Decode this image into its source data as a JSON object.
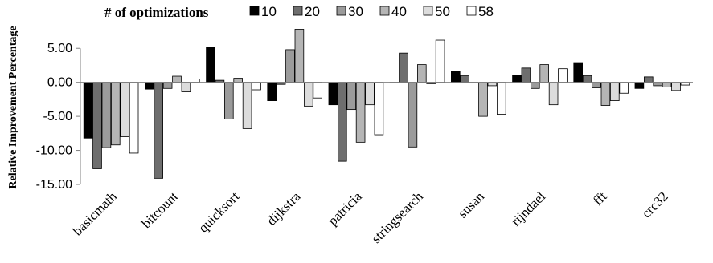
{
  "chart_data": {
    "type": "bar",
    "ylabel": "Relative Improvement Percentage",
    "ylim": [
      -15,
      7.5
    ],
    "yticks": [
      5,
      0,
      -5,
      -10,
      -15
    ],
    "ytick_labels": [
      "5.00",
      "0.00",
      "-5.00",
      "-10.00",
      "-15.00"
    ],
    "legend_title": "# of optimizations",
    "legend_position": "top",
    "grid": false,
    "categories": [
      "basicmath",
      "bitcount",
      "quicksort",
      "dijkstra",
      "patricia",
      "stringsearch",
      "susan",
      "rijndael",
      "fft",
      "crc32"
    ],
    "series": [
      {
        "name": "10",
        "color": "#000000",
        "values": [
          -8.2,
          -1.0,
          5.1,
          -2.7,
          -3.3,
          0.0,
          1.6,
          1.0,
          2.9,
          -0.9
        ]
      },
      {
        "name": "20",
        "color": "#6e6e6e",
        "values": [
          -12.7,
          -14.1,
          0.3,
          -0.3,
          -11.6,
          4.3,
          1.0,
          2.1,
          1.0,
          0.8
        ]
      },
      {
        "name": "30",
        "color": "#9b9b9b",
        "values": [
          -9.6,
          -0.9,
          -5.4,
          4.8,
          -4.0,
          -9.5,
          -0.1,
          -0.9,
          -0.8,
          -0.5
        ]
      },
      {
        "name": "40",
        "color": "#b5b5b5",
        "values": [
          -9.2,
          0.9,
          0.6,
          7.8,
          -8.8,
          2.6,
          -5.0,
          2.6,
          -3.4,
          -0.7
        ]
      },
      {
        "name": "50",
        "color": "#dcdcdc",
        "values": [
          -8.0,
          -1.4,
          -6.8,
          -3.5,
          -3.3,
          -0.2,
          -0.5,
          -3.3,
          -2.7,
          -1.2
        ]
      },
      {
        "name": "58",
        "color": "#ffffff",
        "values": [
          -10.4,
          0.5,
          -1.1,
          -2.3,
          -7.7,
          6.2,
          -4.7,
          2.0,
          -1.6,
          -0.4
        ]
      }
    ]
  }
}
